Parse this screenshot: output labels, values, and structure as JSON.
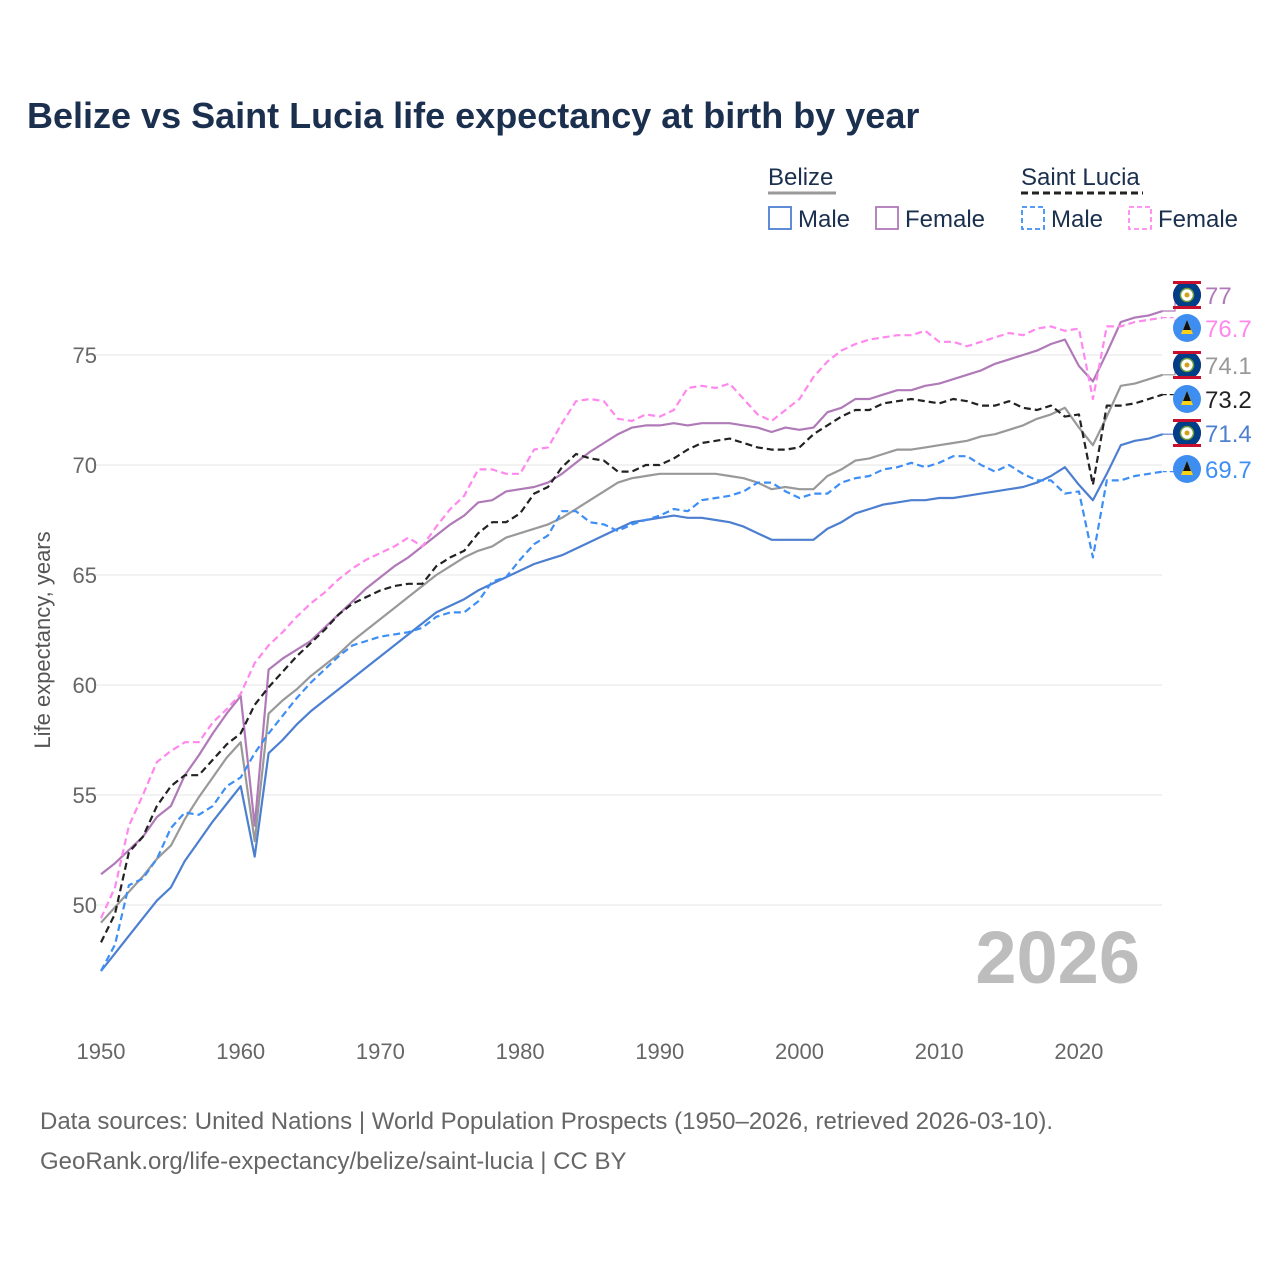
{
  "title": "Belize vs Saint Lucia life expectancy at birth by year",
  "footer": {
    "line1": "Data sources: United Nations | World Population Prospects (1950–2026, retrieved 2026-03-10).",
    "line2": "GeoRank.org/life-expectancy/belize/saint-lucia | CC BY"
  },
  "watermark_year": "2026",
  "legend": {
    "groups": [
      {
        "name": "Belize",
        "items": [
          "Male",
          "Female"
        ]
      },
      {
        "name": "Saint Lucia",
        "items": [
          "Male",
          "Female"
        ]
      }
    ]
  },
  "chart_data": {
    "type": "line",
    "title": "Belize vs Saint Lucia life expectancy at birth by year",
    "xlabel": "",
    "ylabel": "Life expectancy, years",
    "xlim": [
      1950,
      2026
    ],
    "ylim": [
      45.5,
      78
    ],
    "xticks": [
      1950,
      1960,
      1970,
      1980,
      1990,
      2000,
      2010,
      2020
    ],
    "yticks": [
      50,
      55,
      60,
      65,
      70,
      75
    ],
    "grid": true,
    "legend_position": "top-right",
    "x_start": 1950,
    "series": [
      {
        "name": "Belize Male",
        "color": "#4d7fd1",
        "dashed": false,
        "end_label": "71.4",
        "flag": "belize",
        "values": [
          47.0,
          47.8,
          48.6,
          49.4,
          50.2,
          50.8,
          52.0,
          52.9,
          53.8,
          54.6,
          55.4,
          52.2,
          56.9,
          57.5,
          58.2,
          58.8,
          59.3,
          59.8,
          60.3,
          60.8,
          61.3,
          61.8,
          62.3,
          62.8,
          63.3,
          63.6,
          63.9,
          64.3,
          64.6,
          64.9,
          65.2,
          65.5,
          65.7,
          65.9,
          66.2,
          66.5,
          66.8,
          67.1,
          67.4,
          67.5,
          67.6,
          67.7,
          67.6,
          67.6,
          67.5,
          67.4,
          67.2,
          66.9,
          66.6,
          66.6,
          66.6,
          66.6,
          67.1,
          67.4,
          67.8,
          68.0,
          68.2,
          68.3,
          68.4,
          68.4,
          68.5,
          68.5,
          68.6,
          68.7,
          68.8,
          68.9,
          69.0,
          69.2,
          69.5,
          69.9,
          69.1,
          68.4,
          69.6,
          70.9,
          71.1,
          71.2,
          71.4
        ]
      },
      {
        "name": "Belize Female",
        "color": "#b07ab8",
        "dashed": false,
        "end_label": "77",
        "flag": "belize",
        "values": [
          51.4,
          51.9,
          52.5,
          53.1,
          54.0,
          54.5,
          55.9,
          56.8,
          57.8,
          58.7,
          59.5,
          53.6,
          60.7,
          61.2,
          61.6,
          62.0,
          62.6,
          63.2,
          63.8,
          64.4,
          64.9,
          65.4,
          65.8,
          66.3,
          66.8,
          67.3,
          67.7,
          68.3,
          68.4,
          68.8,
          68.9,
          69.0,
          69.2,
          69.6,
          70.1,
          70.6,
          71.0,
          71.4,
          71.7,
          71.8,
          71.8,
          71.9,
          71.8,
          71.9,
          71.9,
          71.9,
          71.8,
          71.7,
          71.5,
          71.7,
          71.6,
          71.7,
          72.4,
          72.6,
          73.0,
          73.0,
          73.2,
          73.4,
          73.4,
          73.6,
          73.7,
          73.9,
          74.1,
          74.3,
          74.6,
          74.8,
          75.0,
          75.2,
          75.5,
          75.7,
          74.5,
          73.8,
          75.1,
          76.5,
          76.7,
          76.8,
          77.0
        ]
      },
      {
        "name": "Belize Total",
        "color": "#999999",
        "dashed": false,
        "end_label": "74.1",
        "flag": "belize",
        "values": [
          49.2,
          49.9,
          50.6,
          51.3,
          52.1,
          52.7,
          53.9,
          54.9,
          55.8,
          56.7,
          57.4,
          52.9,
          58.7,
          59.3,
          59.8,
          60.4,
          60.9,
          61.4,
          62.0,
          62.5,
          63.0,
          63.5,
          64.0,
          64.5,
          65.0,
          65.4,
          65.8,
          66.1,
          66.3,
          66.7,
          66.9,
          67.1,
          67.3,
          67.6,
          68.0,
          68.4,
          68.8,
          69.2,
          69.4,
          69.5,
          69.6,
          69.6,
          69.6,
          69.6,
          69.6,
          69.5,
          69.4,
          69.2,
          68.9,
          69.0,
          68.9,
          68.9,
          69.5,
          69.8,
          70.2,
          70.3,
          70.5,
          70.7,
          70.7,
          70.8,
          70.9,
          71.0,
          71.1,
          71.3,
          71.4,
          71.6,
          71.8,
          72.1,
          72.3,
          72.6,
          71.7,
          70.9,
          72.2,
          73.6,
          73.7,
          73.9,
          74.1
        ]
      },
      {
        "name": "Saint Lucia Male",
        "color": "#3d8ef5",
        "dashed": true,
        "end_label": "69.7",
        "flag": "saint-lucia",
        "values": [
          47.0,
          48.2,
          50.9,
          51.2,
          52.1,
          53.5,
          54.2,
          54.1,
          54.5,
          55.4,
          55.8,
          56.9,
          57.8,
          58.6,
          59.4,
          60.1,
          60.7,
          61.3,
          61.8,
          62.0,
          62.2,
          62.3,
          62.4,
          62.6,
          63.1,
          63.3,
          63.3,
          63.8,
          64.7,
          64.9,
          65.7,
          66.4,
          66.8,
          67.9,
          67.9,
          67.4,
          67.3,
          67.0,
          67.3,
          67.5,
          67.7,
          68.0,
          67.9,
          68.4,
          68.5,
          68.6,
          68.8,
          69.2,
          69.2,
          68.8,
          68.5,
          68.7,
          68.7,
          69.2,
          69.4,
          69.5,
          69.8,
          69.9,
          70.1,
          69.9,
          70.1,
          70.4,
          70.4,
          70.0,
          69.7,
          70.0,
          69.6,
          69.3,
          69.3,
          68.7,
          68.8,
          65.8,
          69.3,
          69.3,
          69.5,
          69.6,
          69.7
        ]
      },
      {
        "name": "Saint Lucia Female",
        "color": "#ff88ee",
        "dashed": true,
        "end_label": "76.7",
        "flag": "saint-lucia",
        "values": [
          49.4,
          50.8,
          53.6,
          55.0,
          56.5,
          57.0,
          57.4,
          57.4,
          58.3,
          58.9,
          59.6,
          61.0,
          61.8,
          62.4,
          63.1,
          63.7,
          64.2,
          64.8,
          65.3,
          65.7,
          66.0,
          66.3,
          66.7,
          66.3,
          67.2,
          68.0,
          68.6,
          69.8,
          69.8,
          69.6,
          69.6,
          70.7,
          70.8,
          71.9,
          72.9,
          73.0,
          72.9,
          72.1,
          72.0,
          72.3,
          72.2,
          72.5,
          73.5,
          73.6,
          73.5,
          73.7,
          73.0,
          72.3,
          72.0,
          72.5,
          73.0,
          74.0,
          74.7,
          75.2,
          75.5,
          75.7,
          75.8,
          75.9,
          75.9,
          76.1,
          75.6,
          75.6,
          75.4,
          75.6,
          75.8,
          76.0,
          75.9,
          76.2,
          76.3,
          76.1,
          76.2,
          73.0,
          76.3,
          76.3,
          76.5,
          76.6,
          76.7
        ]
      },
      {
        "name": "Saint Lucia Total",
        "color": "#222222",
        "dashed": true,
        "end_label": "73.2",
        "flag": "saint-lucia",
        "values": [
          48.3,
          49.6,
          52.4,
          53.1,
          54.5,
          55.4,
          55.9,
          55.9,
          56.6,
          57.3,
          57.8,
          59.1,
          59.9,
          60.6,
          61.3,
          61.9,
          62.5,
          63.2,
          63.7,
          64.0,
          64.3,
          64.5,
          64.6,
          64.6,
          65.4,
          65.8,
          66.1,
          66.9,
          67.4,
          67.4,
          67.8,
          68.7,
          69.0,
          69.9,
          70.5,
          70.3,
          70.2,
          69.7,
          69.7,
          70.0,
          70.0,
          70.3,
          70.7,
          71.0,
          71.1,
          71.2,
          71.0,
          70.8,
          70.7,
          70.7,
          70.8,
          71.4,
          71.8,
          72.2,
          72.5,
          72.5,
          72.8,
          72.9,
          73.0,
          72.9,
          72.8,
          73.0,
          72.9,
          72.7,
          72.7,
          72.9,
          72.6,
          72.5,
          72.7,
          72.2,
          72.3,
          69.1,
          72.7,
          72.7,
          72.8,
          73.0,
          73.2
        ]
      }
    ]
  }
}
